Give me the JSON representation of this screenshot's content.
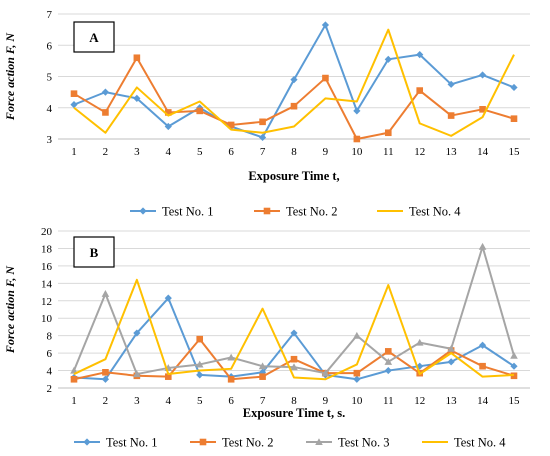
{
  "chart_data": [
    {
      "type": "line",
      "panel_label": "A",
      "xlabel": "Exposure Time t,",
      "ylabel": "Force action F, N",
      "x": [
        1,
        2,
        3,
        4,
        5,
        6,
        7,
        8,
        9,
        10,
        11,
        12,
        13,
        14,
        15
      ],
      "xlim": [
        1,
        15
      ],
      "ylim": [
        3,
        7
      ],
      "yticks": [
        3,
        4,
        5,
        6,
        7
      ],
      "grid": "horizontal",
      "legend_position": "bottom",
      "series": [
        {
          "name": "Test No. 1",
          "color": "#5B9BD5",
          "marker": "diamond",
          "values": [
            4.1,
            4.5,
            4.3,
            3.4,
            4.0,
            3.4,
            3.05,
            4.9,
            6.65,
            3.9,
            5.55,
            5.7,
            4.75,
            5.05,
            4.65
          ]
        },
        {
          "name": "Test No. 2",
          "color": "#ED7D31",
          "marker": "square",
          "values": [
            4.45,
            3.85,
            5.6,
            3.85,
            3.9,
            3.45,
            3.55,
            4.05,
            4.95,
            3.0,
            3.2,
            4.55,
            3.75,
            3.95,
            3.65
          ]
        },
        {
          "name": "Test No. 4",
          "color": "#FFC000",
          "marker": "none",
          "values": [
            4.0,
            3.2,
            4.65,
            3.75,
            4.2,
            3.3,
            3.2,
            3.4,
            4.3,
            4.2,
            6.5,
            3.5,
            3.1,
            3.7,
            5.7
          ]
        }
      ]
    },
    {
      "type": "line",
      "panel_label": "B",
      "xlabel": "Exposure Time t, s.",
      "ylabel": "Force action F, N",
      "x": [
        1,
        2,
        3,
        4,
        5,
        6,
        7,
        8,
        9,
        10,
        11,
        12,
        13,
        14,
        15
      ],
      "xlim": [
        1,
        15
      ],
      "ylim": [
        2,
        20
      ],
      "yticks": [
        2,
        4,
        6,
        8,
        10,
        12,
        14,
        16,
        18,
        20
      ],
      "grid": "horizontal",
      "legend_position": "bottom",
      "series": [
        {
          "name": "Test No. 1",
          "color": "#5B9BD5",
          "marker": "diamond",
          "values": [
            3.2,
            3.0,
            8.3,
            12.3,
            3.5,
            3.3,
            3.8,
            8.3,
            3.5,
            3.0,
            4.0,
            4.5,
            5.0,
            6.9,
            4.5
          ]
        },
        {
          "name": "Test No. 2",
          "color": "#ED7D31",
          "marker": "square",
          "values": [
            3.0,
            3.8,
            3.4,
            3.3,
            7.6,
            3.0,
            3.3,
            5.3,
            3.7,
            3.7,
            6.2,
            3.7,
            6.3,
            4.5,
            3.4
          ]
        },
        {
          "name": "Test No. 3",
          "color": "#A5A5A5",
          "marker": "triangle",
          "values": [
            4.0,
            12.8,
            3.6,
            4.3,
            4.7,
            5.5,
            4.5,
            4.4,
            3.7,
            8.0,
            5.0,
            7.2,
            6.5,
            18.2,
            5.7
          ]
        },
        {
          "name": "Test No. 4",
          "color": "#FFC000",
          "marker": "none",
          "values": [
            3.6,
            5.3,
            14.4,
            3.6,
            4.0,
            4.2,
            11.1,
            3.2,
            3.0,
            4.7,
            13.8,
            3.6,
            6.0,
            3.3,
            3.5
          ]
        }
      ]
    }
  ]
}
